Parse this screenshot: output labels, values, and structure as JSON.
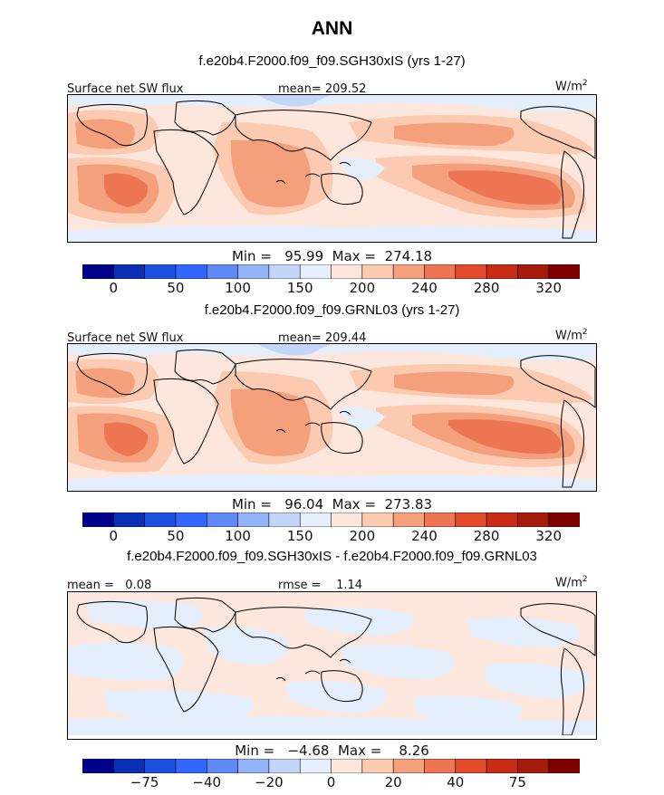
{
  "figure": {
    "title": "ANN"
  },
  "panels": [
    {
      "title": "f.e20b4.F2000.f09_f09.SGH30xIS (yrs 1-27)",
      "left_label": "Surface net SW flux",
      "center_label": "mean= 209.52",
      "units": "W/m",
      "units_sup": "2",
      "stats": "Min =   95.99  Max =  274.18",
      "colorbar_ticks": [
        "0",
        "50",
        "100",
        "150",
        "200",
        "240",
        "280",
        "320"
      ],
      "field": "abs"
    },
    {
      "title": "f.e20b4.F2000.f09_f09.GRNL03 (yrs 1-27)",
      "left_label": "Surface net SW flux",
      "center_label": "mean= 209.44",
      "units": "W/m",
      "units_sup": "2",
      "stats": "Min =   96.04  Max =  273.83",
      "colorbar_ticks": [
        "0",
        "50",
        "100",
        "150",
        "200",
        "240",
        "280",
        "320"
      ],
      "field": "abs"
    },
    {
      "title": "f.e20b4.F2000.f09_f09.SGH30xIS - f.e20b4.F2000.f09_f09.GRNL03",
      "left_label": "mean =   0.08",
      "center_label": "rmse =    1.14",
      "units": "W/m",
      "units_sup": "2",
      "stats": "Min =   −4.68  Max =    8.26",
      "colorbar_ticks": [
        "−75",
        "−40",
        "−20",
        "0",
        "20",
        "40",
        "75"
      ],
      "field": "diff"
    }
  ],
  "chart_data": {
    "type": "heatmap",
    "title": "ANN",
    "variable": "Surface net SW flux",
    "units": "W/m2",
    "panels": [
      {
        "name": "f.e20b4.F2000.f09_f09.SGH30xIS (yrs 1-27)",
        "mean": 209.52,
        "min": 95.99,
        "max": 274.18,
        "contour_levels": [
          0,
          25,
          50,
          75,
          100,
          125,
          150,
          175,
          200,
          220,
          240,
          260,
          280,
          300,
          320
        ]
      },
      {
        "name": "f.e20b4.F2000.f09_f09.GRNL03 (yrs 1-27)",
        "mean": 209.44,
        "min": 96.04,
        "max": 273.83,
        "contour_levels": [
          0,
          25,
          50,
          75,
          100,
          125,
          150,
          175,
          200,
          220,
          240,
          260,
          280,
          300,
          320
        ]
      },
      {
        "name": "f.e20b4.F2000.f09_f09.SGH30xIS - f.e20b4.F2000.f09_f09.GRNL03",
        "mean": 0.08,
        "rmse": 1.14,
        "min": -4.68,
        "max": 8.26,
        "contour_levels": [
          -100,
          -75,
          -50,
          -40,
          -30,
          -20,
          -10,
          0,
          10,
          20,
          30,
          40,
          50,
          75,
          100
        ]
      }
    ],
    "colormap": [
      "#00008b",
      "#0a2fb4",
      "#1a4fe0",
      "#3366ff",
      "#5f8af5",
      "#93b3f7",
      "#c3d6fa",
      "#e4eefc",
      "#fde7dc",
      "#fbcab1",
      "#f4a07d",
      "#ee7553",
      "#e24a2b",
      "#c92c15",
      "#a61a0b",
      "#7f0000"
    ]
  }
}
